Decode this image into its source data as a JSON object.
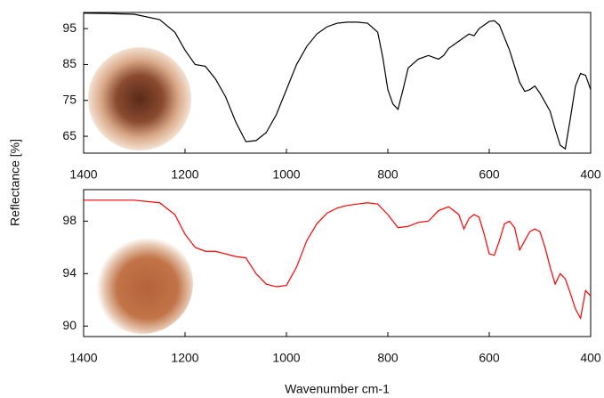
{
  "chart_data": [
    {
      "type": "line",
      "ylabel": "Reflectance [%]",
      "color": "#000000",
      "x": [
        1400,
        1350,
        1300,
        1250,
        1220,
        1200,
        1180,
        1160,
        1140,
        1120,
        1100,
        1080,
        1060,
        1040,
        1020,
        1000,
        980,
        960,
        940,
        920,
        900,
        880,
        860,
        840,
        820,
        810,
        800,
        790,
        780,
        770,
        760,
        740,
        720,
        700,
        690,
        680,
        660,
        640,
        630,
        620,
        600,
        590,
        580,
        560,
        540,
        530,
        520,
        510,
        500,
        480,
        470,
        460,
        450,
        440,
        430,
        420,
        410,
        400
      ],
      "values": [
        99.3,
        99.2,
        99,
        97.5,
        94,
        89,
        85,
        84.5,
        81,
        76,
        69,
        63.5,
        63.8,
        66,
        71,
        78,
        85,
        90,
        93.5,
        95.5,
        96.5,
        96.8,
        96.8,
        96.5,
        94,
        87,
        78,
        74,
        72.5,
        78,
        84,
        86.5,
        87.5,
        86.5,
        87.5,
        89.5,
        91.5,
        93.5,
        93,
        95,
        97,
        97.2,
        96,
        89,
        80,
        77.5,
        78,
        79,
        77,
        72,
        67,
        62.5,
        61.5,
        70,
        79,
        82.5,
        82,
        78
      ],
      "xlim": [
        1400,
        400
      ],
      "xticks": [
        1400,
        1200,
        1000,
        800,
        600,
        400
      ],
      "ylim": [
        60.3,
        99.5
      ],
      "yticks": [
        65,
        75,
        85,
        95
      ]
    },
    {
      "type": "line",
      "xlabel": "Wavenumber cm-1",
      "color": "#ff0000",
      "x": [
        1400,
        1300,
        1250,
        1220,
        1200,
        1180,
        1160,
        1140,
        1120,
        1100,
        1080,
        1060,
        1040,
        1020,
        1000,
        980,
        960,
        940,
        920,
        900,
        880,
        860,
        840,
        820,
        800,
        780,
        760,
        740,
        720,
        700,
        680,
        660,
        650,
        640,
        630,
        620,
        610,
        600,
        590,
        580,
        570,
        560,
        550,
        540,
        530,
        520,
        510,
        500,
        490,
        480,
        470,
        460,
        450,
        440,
        430,
        420,
        410,
        400
      ],
      "values": [
        99.6,
        99.6,
        99.4,
        98.5,
        97,
        96,
        95.7,
        95.7,
        95.5,
        95.3,
        95.2,
        94,
        93.2,
        93,
        93.1,
        94.5,
        96.5,
        97.8,
        98.6,
        99,
        99.2,
        99.3,
        99.4,
        99.3,
        98.5,
        97.5,
        97.6,
        97.9,
        98,
        98.8,
        99.1,
        98.5,
        97.4,
        98.2,
        98.5,
        98.3,
        97,
        95.5,
        95.4,
        96.5,
        97.8,
        98,
        97.5,
        95.8,
        96.5,
        97.2,
        97.4,
        97.2,
        96,
        94.5,
        93.2,
        94,
        93.6,
        92.5,
        91.3,
        90.6,
        92.7,
        92.3
      ],
      "xlim": [
        1400,
        400
      ],
      "xticks": [
        1400,
        1200,
        1000,
        800,
        600,
        400
      ],
      "ylim": [
        89.2,
        100.4
      ],
      "yticks": [
        90,
        94,
        98
      ]
    }
  ]
}
